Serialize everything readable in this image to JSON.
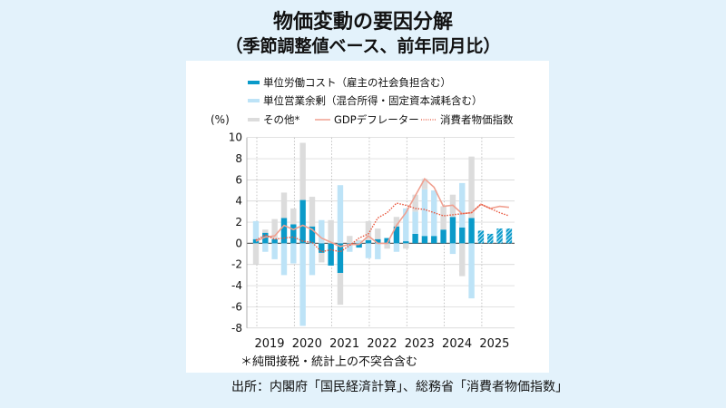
{
  "title": "物価変動の要因分解",
  "subtitle": "（季節調整値ベース、前年同月比）",
  "footnote": "＊純間接税・統計上の不突合含む",
  "source": "出所：内閣府「国民経済計算」、総務省「消費者物価指数」",
  "colors": {
    "labor": "#0a9ac9",
    "surplus": "#bde3f7",
    "other": "#dcdcdc",
    "deflator": "#f0a090",
    "cpi": "#e8543a"
  },
  "chart_data": {
    "type": "bar",
    "stacked": true,
    "ylabel": "(%)",
    "ylim": [
      -8,
      10
    ],
    "yticks": [
      -8,
      -6,
      -4,
      -2,
      0,
      2,
      4,
      6,
      8,
      10
    ],
    "grid": true,
    "legend_placement": "top",
    "year_labels": [
      "2019",
      "2020",
      "2021",
      "2022",
      "2023",
      "2024",
      "2025"
    ],
    "categories": [
      "2019Q1",
      "2019Q2",
      "2019Q3",
      "2019Q4",
      "2020Q1",
      "2020Q2",
      "2020Q3",
      "2020Q4",
      "2021Q1",
      "2021Q2",
      "2021Q3",
      "2021Q4",
      "2022Q1",
      "2022Q2",
      "2022Q3",
      "2022Q4",
      "2023Q1",
      "2023Q2",
      "2023Q3",
      "2023Q4",
      "2024Q1",
      "2024Q2",
      "2024Q3",
      "2024Q4",
      "2025Q1",
      "2025Q2",
      "2025Q3",
      "2025Q4"
    ],
    "forecast_from": "2025Q1",
    "series": [
      {
        "name": "単位労働コスト（雇主の社会負担含む）",
        "kind": "bar",
        "values": [
          0.4,
          1.0,
          0.4,
          2.4,
          1.8,
          4.1,
          1.6,
          -0.9,
          -2.1,
          -2.8,
          -0.1,
          -0.4,
          0.3,
          0.4,
          0.5,
          1.6,
          0.2,
          0.9,
          0.7,
          0.7,
          1.3,
          2.5,
          1.5,
          2.4,
          1.2,
          0.9,
          1.4,
          1.4
        ]
      },
      {
        "name": "単位営業余剰（混合所得・固定資本減耗含む）",
        "kind": "bar",
        "values": [
          1.7,
          -0.8,
          -1.5,
          -3.0,
          -1.9,
          -7.8,
          -3.0,
          2.2,
          0,
          5.5,
          -0.7,
          0.2,
          -1.4,
          -1.5,
          0,
          -0.8,
          3.1,
          2.1,
          4.4,
          4.3,
          0,
          -1.0,
          4.2,
          -5.2,
          null,
          null,
          null,
          null
        ]
      },
      {
        "name": "その他*",
        "kind": "bar",
        "values": [
          -2.0,
          0.3,
          1.9,
          2.4,
          1.5,
          5.4,
          2.8,
          -0.9,
          2.2,
          -3.0,
          0.7,
          0.1,
          1.8,
          1.0,
          -0.5,
          0.9,
          -0.5,
          1.6,
          1.0,
          0,
          2.2,
          2.1,
          -3.1,
          5.8,
          null,
          null,
          null,
          null
        ]
      },
      {
        "name": "GDPデフレーター",
        "kind": "line",
        "values": [
          0.2,
          0.6,
          0.7,
          1.7,
          1.3,
          1.7,
          1.3,
          0.5,
          0.1,
          -0.3,
          -0.1,
          -0.1,
          0.7,
          0.0,
          0.0,
          1.7,
          2.9,
          4.5,
          6.1,
          5.3,
          3.5,
          3.6,
          2.8,
          2.9,
          3.7,
          3.3,
          3.5,
          3.4
        ]
      },
      {
        "name": "消費者物価指数",
        "kind": "dotted-line",
        "values": [
          0.3,
          0.8,
          0.4,
          0.5,
          0.6,
          0.2,
          0.1,
          -0.8,
          -0.6,
          -0.8,
          -0.2,
          0.5,
          0.9,
          2.4,
          2.9,
          3.8,
          3.6,
          3.3,
          3.2,
          2.9,
          2.6,
          2.7,
          2.8,
          2.9,
          3.7,
          3.3,
          2.9,
          2.6
        ]
      }
    ]
  }
}
